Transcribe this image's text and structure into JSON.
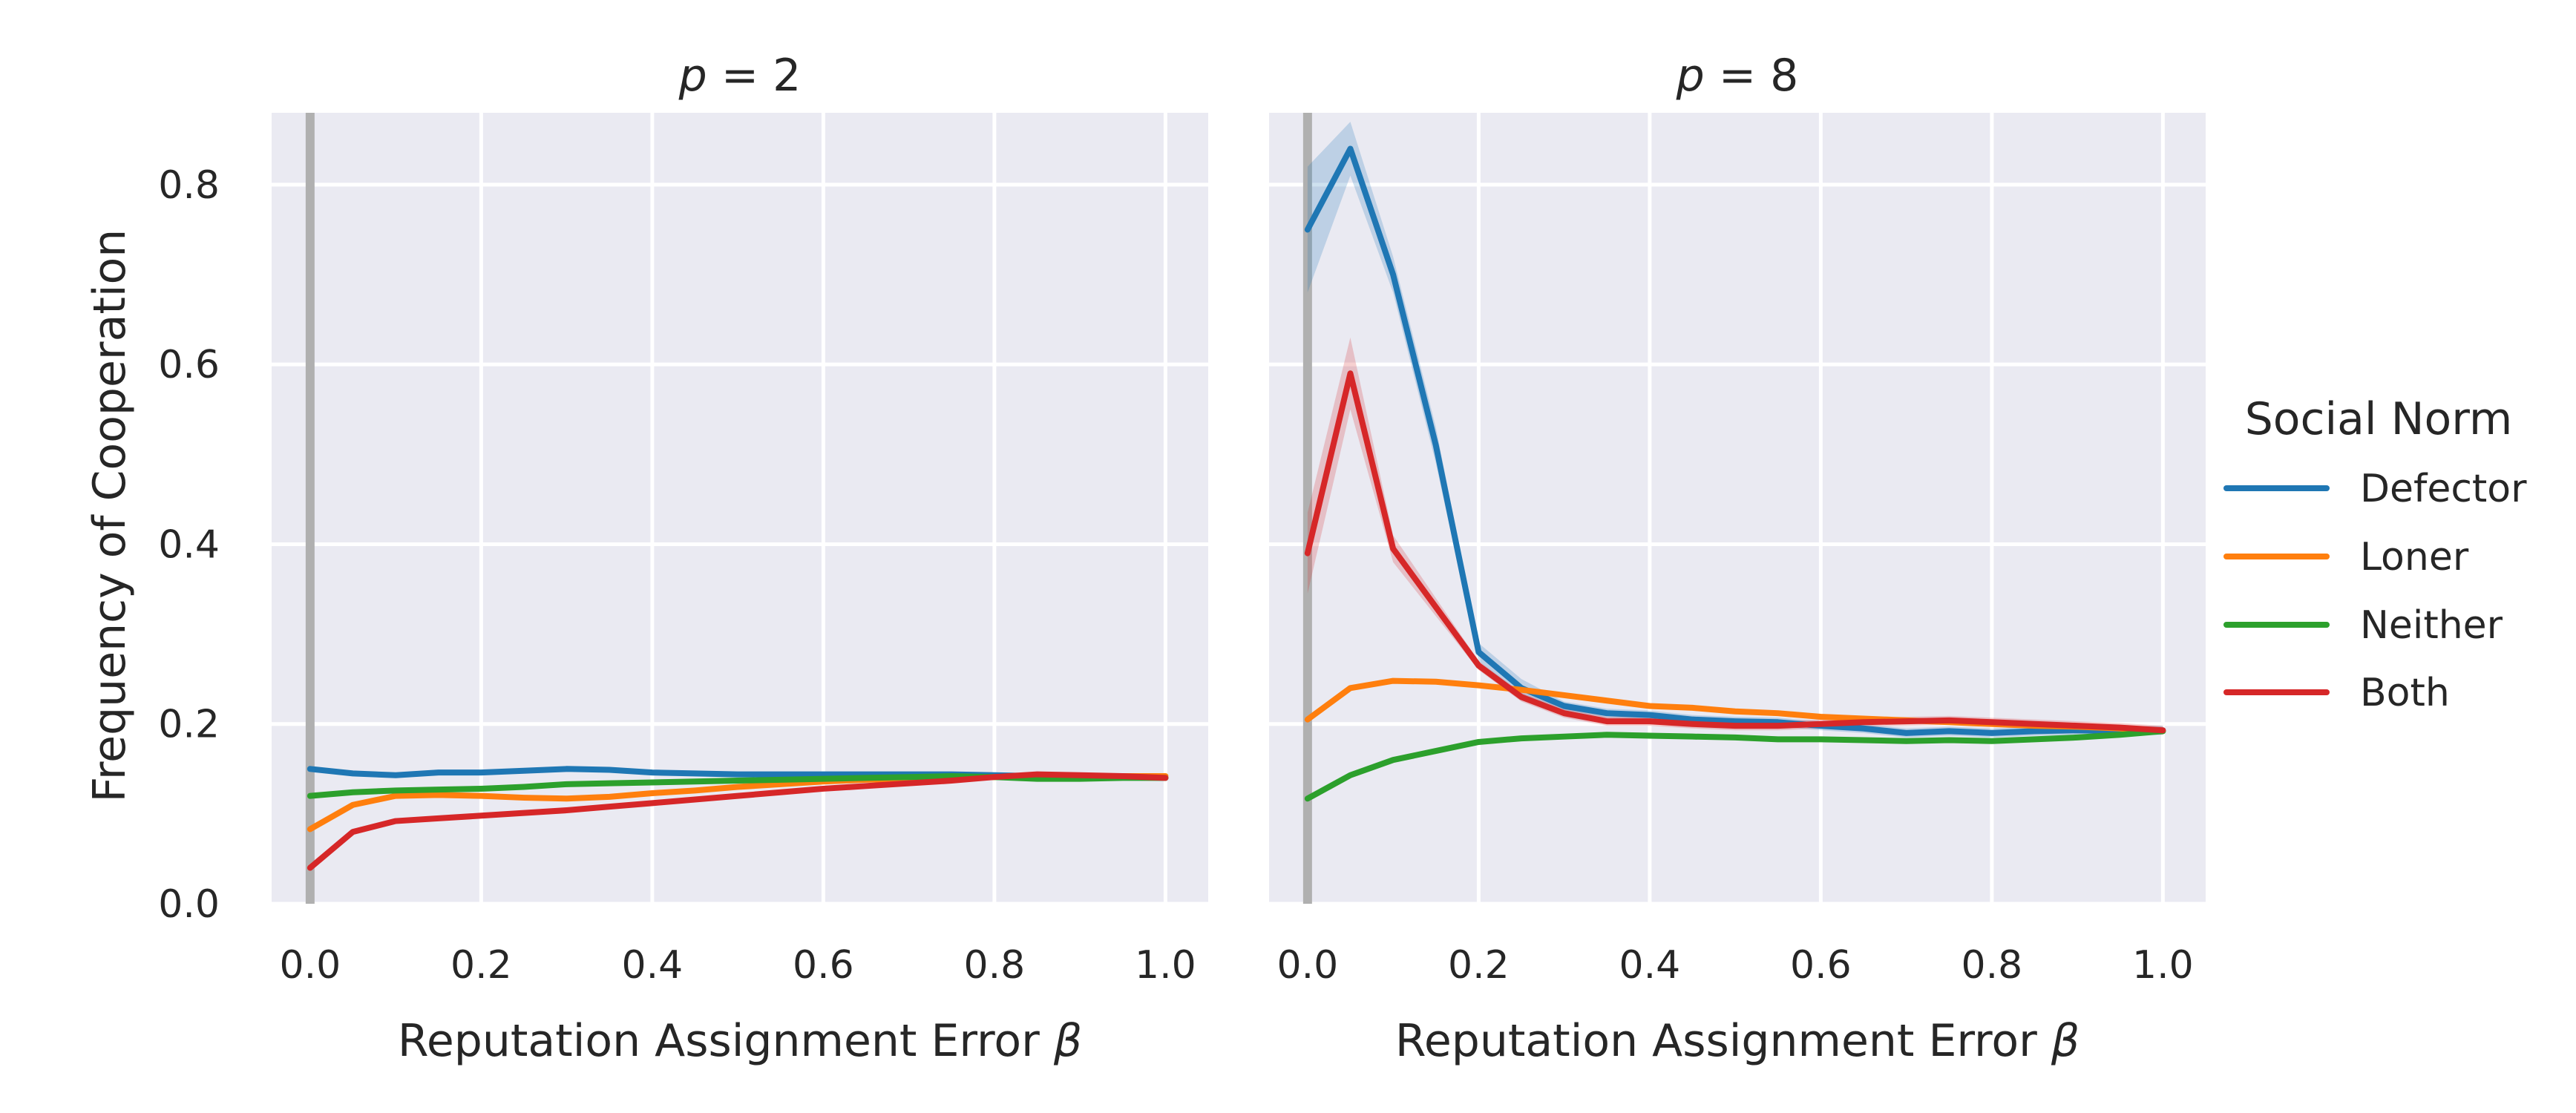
{
  "chart_data": [
    {
      "type": "line",
      "title_var": "p",
      "title_eq": " = 2",
      "xlabel": "Reputation Assignment Error ",
      "xlabel_sym": "β",
      "ylabel": "Frequency of Cooperation",
      "xlim": [
        -0.045,
        1.05
      ],
      "ylim": [
        0.0,
        0.88
      ],
      "xticks": [
        0.0,
        0.2,
        0.4,
        0.6,
        0.8,
        1.0
      ],
      "xtick_labels": [
        "0.0",
        "0.2",
        "0.4",
        "0.6",
        "0.8",
        "1.0"
      ],
      "yticks": [
        0.0,
        0.2,
        0.4,
        0.6,
        0.8
      ],
      "ytick_labels": [
        "0.0",
        "0.2",
        "0.4",
        "0.6",
        "0.8"
      ],
      "vline_x": 0.0,
      "grid": true,
      "x": [
        0.0,
        0.05,
        0.1,
        0.15,
        0.2,
        0.25,
        0.3,
        0.35,
        0.4,
        0.45,
        0.5,
        0.55,
        0.6,
        0.65,
        0.7,
        0.75,
        0.8,
        0.85,
        0.9,
        0.95,
        1.0
      ],
      "series": [
        {
          "name": "Defector",
          "values": [
            0.15,
            0.145,
            0.143,
            0.146,
            0.146,
            0.148,
            0.15,
            0.149,
            0.146,
            0.145,
            0.144,
            0.144,
            0.144,
            0.144,
            0.144,
            0.144,
            0.143,
            0.142,
            0.142,
            0.141,
            0.14
          ]
        },
        {
          "name": "Loner",
          "values": [
            0.083,
            0.11,
            0.12,
            0.121,
            0.12,
            0.118,
            0.117,
            0.119,
            0.123,
            0.126,
            0.13,
            0.133,
            0.136,
            0.138,
            0.139,
            0.14,
            0.141,
            0.142,
            0.142,
            0.142,
            0.142
          ]
        },
        {
          "name": "Neither",
          "values": [
            0.12,
            0.124,
            0.126,
            0.127,
            0.128,
            0.13,
            0.133,
            0.134,
            0.135,
            0.136,
            0.137,
            0.138,
            0.139,
            0.14,
            0.141,
            0.142,
            0.141,
            0.139,
            0.139,
            0.14,
            0.14
          ]
        },
        {
          "name": "Both",
          "values": [
            0.04,
            0.08,
            0.092,
            0.095,
            0.098,
            0.101,
            0.104,
            0.108,
            0.112,
            0.116,
            0.12,
            0.124,
            0.128,
            0.131,
            0.134,
            0.137,
            0.141,
            0.144,
            0.143,
            0.142,
            0.14
          ]
        }
      ]
    },
    {
      "type": "line",
      "title_var": "p",
      "title_eq": " = 8",
      "xlabel": "Reputation Assignment Error ",
      "xlabel_sym": "β",
      "ylabel": "",
      "xlim": [
        -0.045,
        1.05
      ],
      "ylim": [
        0.0,
        0.88
      ],
      "xticks": [
        0.0,
        0.2,
        0.4,
        0.6,
        0.8,
        1.0
      ],
      "xtick_labels": [
        "0.0",
        "0.2",
        "0.4",
        "0.6",
        "0.8",
        "1.0"
      ],
      "vline_x": 0.0,
      "grid": true,
      "x": [
        0.0,
        0.05,
        0.1,
        0.15,
        0.2,
        0.25,
        0.3,
        0.35,
        0.4,
        0.45,
        0.5,
        0.55,
        0.6,
        0.65,
        0.7,
        0.75,
        0.8,
        0.85,
        0.9,
        0.95,
        1.0
      ],
      "series": [
        {
          "name": "Defector",
          "values": [
            0.75,
            0.84,
            0.7,
            0.51,
            0.28,
            0.24,
            0.22,
            0.212,
            0.21,
            0.205,
            0.203,
            0.202,
            0.198,
            0.195,
            0.19,
            0.192,
            0.19,
            0.192,
            0.193,
            0.192,
            0.193
          ],
          "band": [
            0.07,
            0.03,
            0.02,
            0.02,
            0.01,
            0.01,
            0.005,
            0.005,
            0.005,
            0.005,
            0.005,
            0.005,
            0.005,
            0.005,
            0.005,
            0.005,
            0.005,
            0.005,
            0.005,
            0.005,
            0.005
          ]
        },
        {
          "name": "Loner",
          "values": [
            0.205,
            0.24,
            0.248,
            0.247,
            0.243,
            0.238,
            0.232,
            0.226,
            0.22,
            0.218,
            0.214,
            0.212,
            0.208,
            0.206,
            0.204,
            0.202,
            0.2,
            0.198,
            0.197,
            0.195,
            0.192
          ]
        },
        {
          "name": "Neither",
          "values": [
            0.117,
            0.143,
            0.16,
            0.17,
            0.18,
            0.184,
            0.186,
            0.188,
            0.187,
            0.186,
            0.185,
            0.183,
            0.183,
            0.182,
            0.181,
            0.182,
            0.181,
            0.183,
            0.185,
            0.188,
            0.192
          ]
        },
        {
          "name": "Both",
          "values": [
            0.39,
            0.59,
            0.395,
            0.33,
            0.265,
            0.23,
            0.212,
            0.203,
            0.203,
            0.2,
            0.198,
            0.198,
            0.2,
            0.202,
            0.203,
            0.204,
            0.202,
            0.2,
            0.198,
            0.196,
            0.193
          ],
          "band": [
            0.045,
            0.04,
            0.015,
            0.01,
            0.005,
            0.005,
            0.005,
            0.005,
            0.005,
            0.005,
            0.005,
            0.005,
            0.005,
            0.005,
            0.005,
            0.005,
            0.005,
            0.005,
            0.005,
            0.005,
            0.005
          ]
        }
      ]
    }
  ],
  "legend": {
    "title": "Social Norm",
    "placement": "right",
    "items": [
      {
        "label": "Defector",
        "color": "#1f77b4"
      },
      {
        "label": "Loner",
        "color": "#ff7f0e"
      },
      {
        "label": "Neither",
        "color": "#2ca02c"
      },
      {
        "label": "Both",
        "color": "#d62728"
      }
    ]
  },
  "colors": {
    "plot_background": "#eaeaf2",
    "grid": "#ffffff",
    "vline": "#b0b0b0"
  }
}
